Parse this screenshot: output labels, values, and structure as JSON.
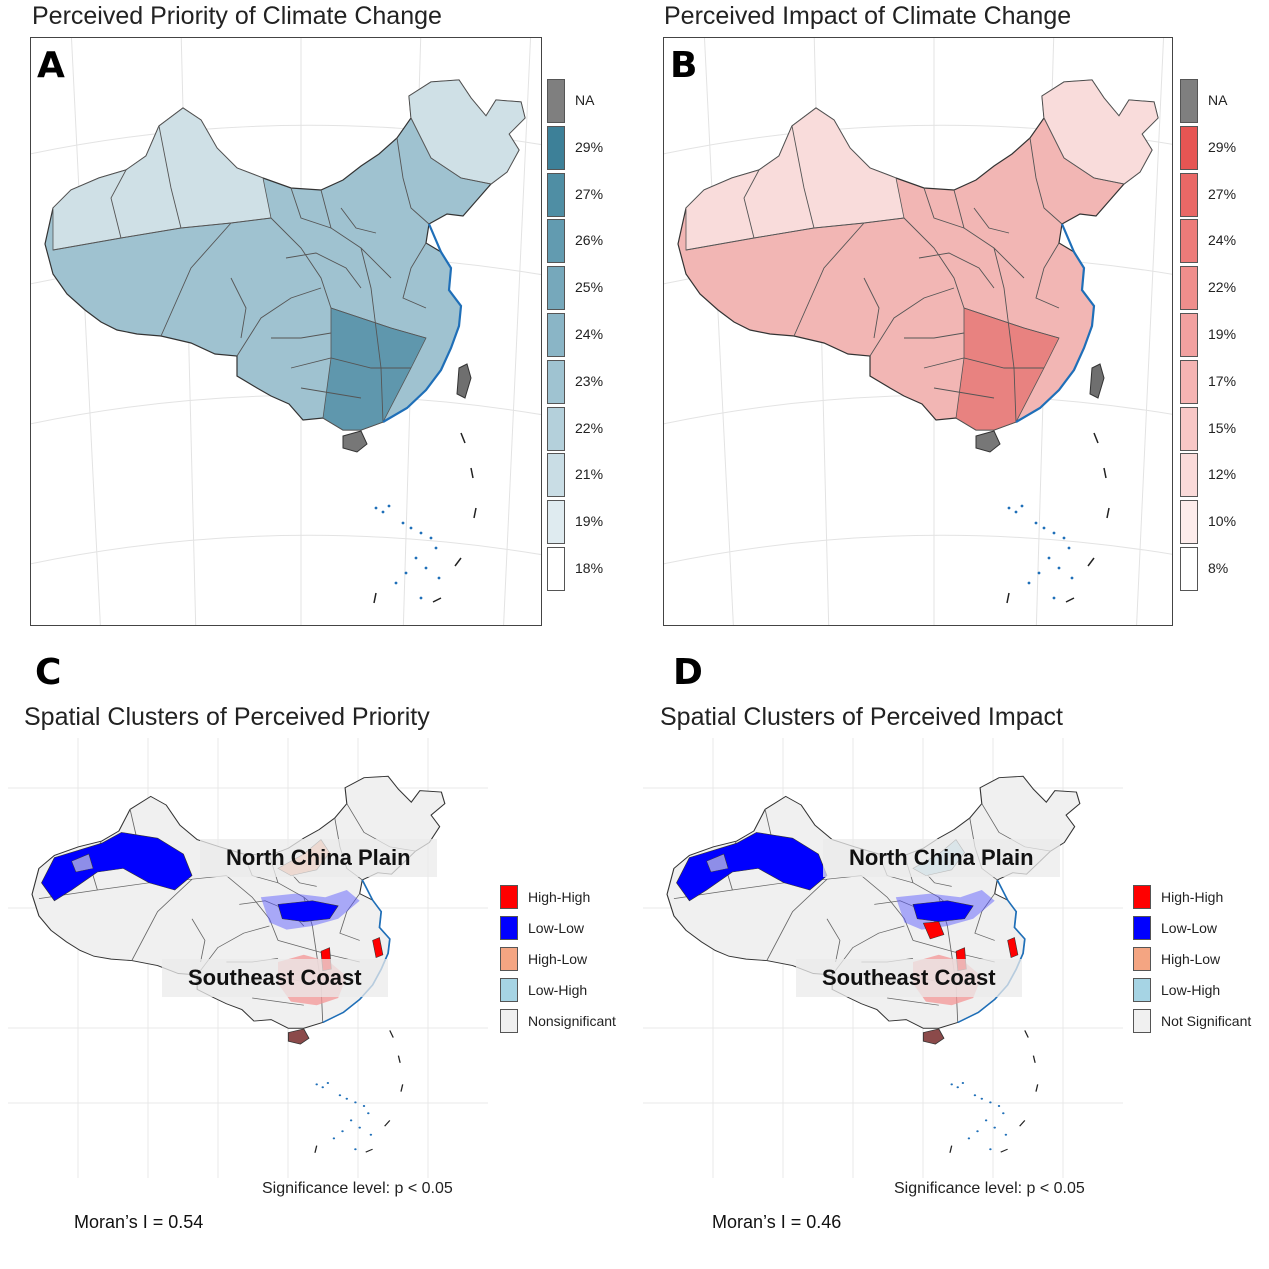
{
  "panels": {
    "a": {
      "letter": "A",
      "title": "Perceived Priority of Climate Change",
      "fill": "#9fc2d0",
      "fill_west": "#cfe0e6",
      "fill_dark": "#5f97ad",
      "legend": [
        {
          "label": "NA",
          "color": "#7f7f7f"
        },
        {
          "label": "29%",
          "color": "#3d8098"
        },
        {
          "label": "27%",
          "color": "#4f8ea4"
        },
        {
          "label": "26%",
          "color": "#629bb0"
        },
        {
          "label": "25%",
          "color": "#76a8bb"
        },
        {
          "label": "24%",
          "color": "#8ab5c6"
        },
        {
          "label": "23%",
          "color": "#9fc3d1"
        },
        {
          "label": "22%",
          "color": "#b4d0db"
        },
        {
          "label": "21%",
          "color": "#c9dde5"
        },
        {
          "label": "19%",
          "color": "#dfebf0"
        },
        {
          "label": "18%",
          "color": "#ffffff"
        }
      ]
    },
    "b": {
      "letter": "B",
      "title": "Perceived Impact of Climate Change",
      "fill": "#f2b6b4",
      "fill_west": "#f9dcdb",
      "fill_dark": "#e88280",
      "legend": [
        {
          "label": "NA",
          "color": "#7f7f7f"
        },
        {
          "label": "29%",
          "color": "#e65553"
        },
        {
          "label": "27%",
          "color": "#e96866"
        },
        {
          "label": "24%",
          "color": "#ec7b79"
        },
        {
          "label": "22%",
          "color": "#ef8e8c"
        },
        {
          "label": "19%",
          "color": "#f2a1a0"
        },
        {
          "label": "17%",
          "color": "#f5b4b3"
        },
        {
          "label": "15%",
          "color": "#f8c7c6"
        },
        {
          "label": "12%",
          "color": "#fadad9"
        },
        {
          "label": "10%",
          "color": "#fdeceb"
        },
        {
          "label": "8%",
          "color": "#ffffff"
        }
      ]
    },
    "c": {
      "letter": "C",
      "title": "Spatial Clusters of Perceived Priority",
      "legend": [
        {
          "label": "High-High",
          "color": "#ff0000"
        },
        {
          "label": "Low-Low",
          "color": "#0000ff"
        },
        {
          "label": "High-Low",
          "color": "#f4a582"
        },
        {
          "label": "Low-High",
          "color": "#a6d4e4"
        },
        {
          "label": "Nonsignificant",
          "color": "#f0f0f0"
        }
      ],
      "region_north": "North China Plain",
      "region_south": "Southeast Coast",
      "significance": "Significance level: p < 0.05",
      "moran": "Moran’s I = 0.54"
    },
    "d": {
      "letter": "D",
      "title": "Spatial Clusters of Perceived Impact",
      "legend": [
        {
          "label": "High-High",
          "color": "#ff0000"
        },
        {
          "label": "Low-Low",
          "color": "#0000ff"
        },
        {
          "label": "High-Low",
          "color": "#f4a582"
        },
        {
          "label": "Low-High",
          "color": "#a6d4e4"
        },
        {
          "label": "Not Significant",
          "color": "#f0f0f0"
        }
      ],
      "region_north": "North China Plain",
      "region_south": "Southeast Coast",
      "significance": "Significance level: p < 0.05",
      "moran": "Moran’s I = 0.46"
    }
  },
  "colors": {
    "border": "#444444",
    "graticule": "#e3e3e3",
    "coast": "#1f6fb8",
    "nonsig": "#f0f0f0",
    "highlow": "#f4a582",
    "lowhigh": "#a6d4e4",
    "highhigh": "#ff0000",
    "lowlow": "#0000ff",
    "taiwan": "#6f6f6f"
  }
}
